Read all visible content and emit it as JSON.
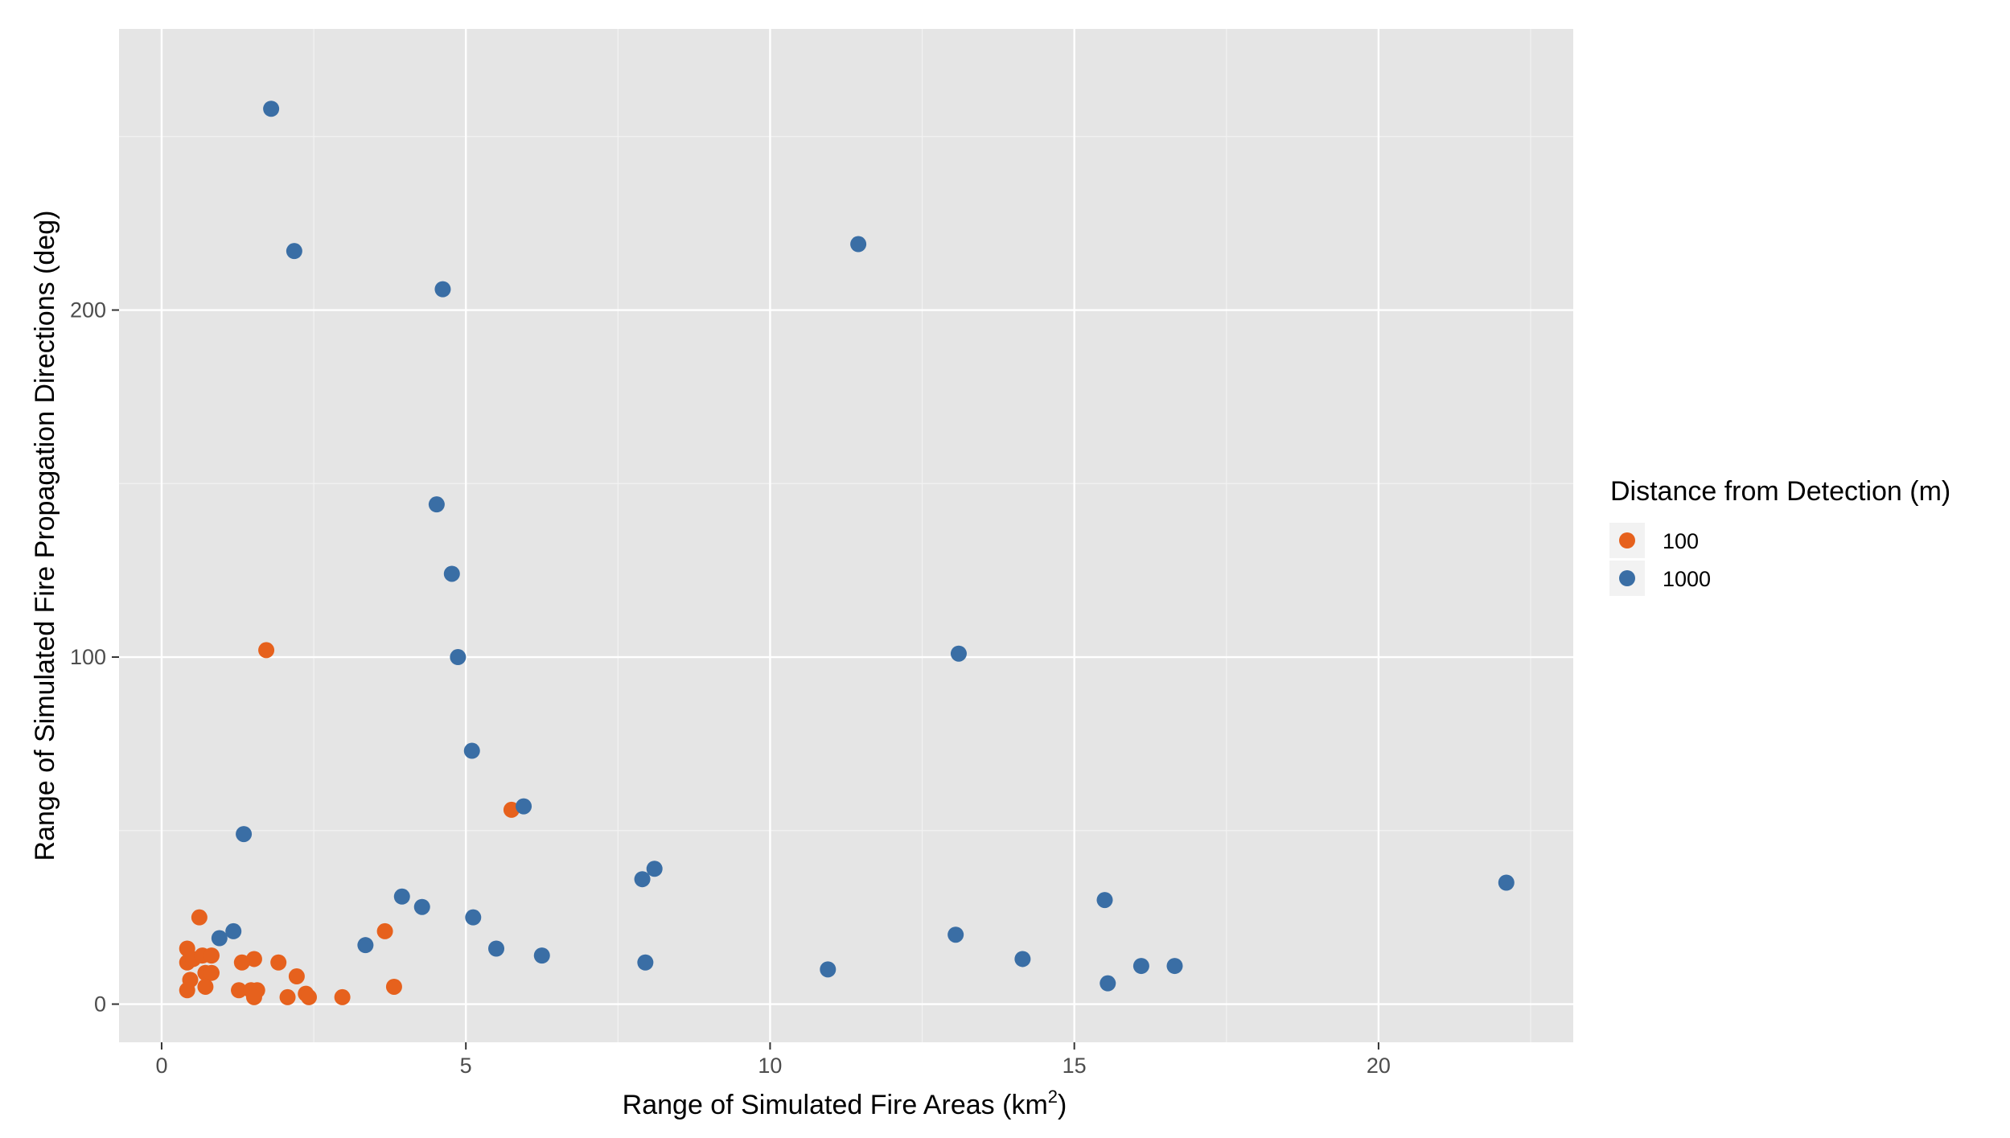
{
  "chart_data": {
    "type": "scatter",
    "title": "",
    "xlabel": "Range of Simulated Fire Areas (km",
    "xlabel_superscript": "2",
    "xlabel_suffix": ")",
    "ylabel": "Range of Simulated Fire Propagation Directions (deg)",
    "xlim": [
      -0.7,
      23.2
    ],
    "ylim": [
      -11,
      281
    ],
    "x_ticks": [
      0,
      5,
      10,
      15,
      20
    ],
    "x_tick_labels": [
      "0",
      "5",
      "10",
      "15",
      "20"
    ],
    "y_ticks": [
      0,
      100,
      200
    ],
    "y_tick_labels": [
      "0",
      "100",
      "200"
    ],
    "grid": true,
    "legend": {
      "title": "Distance from Detection (m)",
      "placement": "right"
    },
    "series": [
      {
        "name": "100",
        "color": "#E6611D",
        "points": [
          [
            1.72,
            102
          ],
          [
            5.75,
            56
          ],
          [
            0.62,
            25
          ],
          [
            3.67,
            21
          ],
          [
            0.42,
            16
          ],
          [
            0.42,
            12
          ],
          [
            0.52,
            13
          ],
          [
            0.67,
            14
          ],
          [
            0.82,
            14
          ],
          [
            1.52,
            13
          ],
          [
            1.32,
            12
          ],
          [
            1.92,
            12
          ],
          [
            0.72,
            9
          ],
          [
            0.82,
            9
          ],
          [
            0.47,
            7
          ],
          [
            2.22,
            8
          ],
          [
            0.72,
            5
          ],
          [
            3.82,
            5
          ],
          [
            0.42,
            4
          ],
          [
            1.27,
            4
          ],
          [
            1.47,
            4
          ],
          [
            1.57,
            4
          ],
          [
            2.37,
            3
          ],
          [
            1.52,
            2
          ],
          [
            2.07,
            2
          ],
          [
            2.42,
            2
          ],
          [
            2.97,
            2
          ]
        ]
      },
      {
        "name": "1000",
        "color": "#3A6EA5",
        "points": [
          [
            1.8,
            258
          ],
          [
            2.18,
            217
          ],
          [
            4.62,
            206
          ],
          [
            11.45,
            219
          ],
          [
            4.52,
            144
          ],
          [
            4.77,
            124
          ],
          [
            4.87,
            100
          ],
          [
            13.1,
            101
          ],
          [
            5.1,
            73
          ],
          [
            5.95,
            57
          ],
          [
            1.35,
            49
          ],
          [
            8.1,
            39
          ],
          [
            7.9,
            36
          ],
          [
            22.1,
            35
          ],
          [
            3.95,
            31
          ],
          [
            15.5,
            30
          ],
          [
            4.28,
            28
          ],
          [
            5.12,
            25
          ],
          [
            1.18,
            21
          ],
          [
            13.05,
            20
          ],
          [
            0.95,
            19
          ],
          [
            3.35,
            17
          ],
          [
            5.5,
            16
          ],
          [
            6.25,
            14
          ],
          [
            14.15,
            13
          ],
          [
            7.95,
            12
          ],
          [
            16.1,
            11
          ],
          [
            16.65,
            11
          ],
          [
            10.95,
            10
          ],
          [
            15.55,
            6
          ]
        ]
      }
    ]
  }
}
